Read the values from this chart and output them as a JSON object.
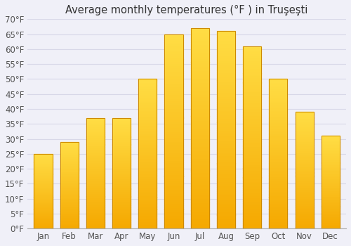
{
  "title": "Average monthly temperatures (°F ) in Truşeşti",
  "months": [
    "Jan",
    "Feb",
    "Mar",
    "Apr",
    "May",
    "Jun",
    "Jul",
    "Aug",
    "Sep",
    "Oct",
    "Nov",
    "Dec"
  ],
  "values": [
    25,
    29,
    37,
    37,
    50,
    65,
    67,
    66,
    61,
    50,
    39,
    31
  ],
  "bar_color_bottom": "#F5A800",
  "bar_color_top": "#FFDD44",
  "bar_edge_color": "#CC8800",
  "ylim": [
    0,
    70
  ],
  "yticks": [
    0,
    5,
    10,
    15,
    20,
    25,
    30,
    35,
    40,
    45,
    50,
    55,
    60,
    65,
    70
  ],
  "ytick_labels": [
    "0°F",
    "5°F",
    "10°F",
    "15°F",
    "20°F",
    "25°F",
    "30°F",
    "35°F",
    "40°F",
    "45°F",
    "50°F",
    "55°F",
    "60°F",
    "65°F",
    "70°F"
  ],
  "background_color": "#f0f0f8",
  "plot_bg_color": "#f0f0f8",
  "grid_color": "#d8d8e8",
  "title_fontsize": 10.5,
  "tick_fontsize": 8.5,
  "bar_width": 0.7
}
